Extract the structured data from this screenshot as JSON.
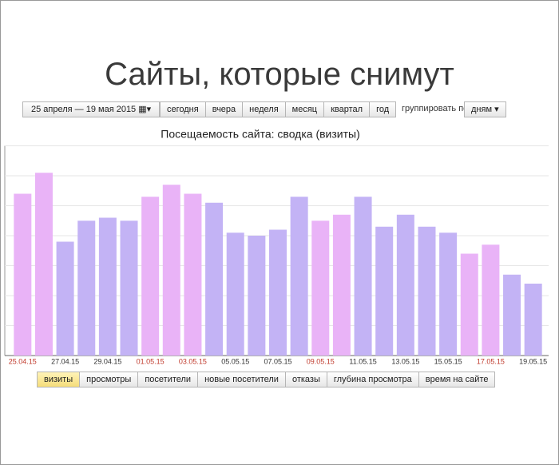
{
  "title": "Сайты, которые снимут",
  "toolbar": {
    "date_range": "25 апреля — 19 мая 2015",
    "periods": [
      "сегодня",
      "вчера",
      "неделя",
      "месяц",
      "квартал",
      "год"
    ],
    "group_label": "группировать по",
    "group_value": "дням"
  },
  "chart_data": {
    "type": "bar",
    "title": "Посещаемость сайта: сводка (визиты)",
    "categories": [
      "25.04.15",
      null,
      "27.04.15",
      null,
      "29.04.15",
      null,
      "01.05.15",
      null,
      "03.05.15",
      null,
      "05.05.15",
      null,
      "07.05.15",
      null,
      "09.05.15",
      null,
      "11.05.15",
      null,
      "13.05.15",
      null,
      "15.05.15",
      null,
      "17.05.15",
      null,
      "19.05.15"
    ],
    "values": [
      5.4,
      6.1,
      3.8,
      4.5,
      4.6,
      4.5,
      5.3,
      5.7,
      5.4,
      5.1,
      4.1,
      4.0,
      4.2,
      5.3,
      4.5,
      4.7,
      5.3,
      4.3,
      4.7,
      4.3,
      4.1,
      3.4,
      3.7,
      2.7,
      2.4
    ],
    "highlight": [
      true,
      true,
      false,
      false,
      false,
      false,
      true,
      true,
      true,
      false,
      false,
      false,
      false,
      false,
      true,
      true,
      false,
      false,
      false,
      false,
      false,
      true,
      true,
      false,
      false
    ],
    "color": "#c3b3f5",
    "highlight_color": "#e9b3f7",
    "label_color": "#333333",
    "highlight_label_color": "#c0392b",
    "ylim": [
      0,
      7
    ],
    "yticks": [
      0,
      1,
      2,
      3,
      4,
      5,
      6,
      7
    ],
    "grid": true
  },
  "metric_tabs": [
    "визиты",
    "просмотры",
    "посетители",
    "новые посетители",
    "отказы",
    "глубина просмотра",
    "время на сайте"
  ],
  "selected_tab": 0
}
